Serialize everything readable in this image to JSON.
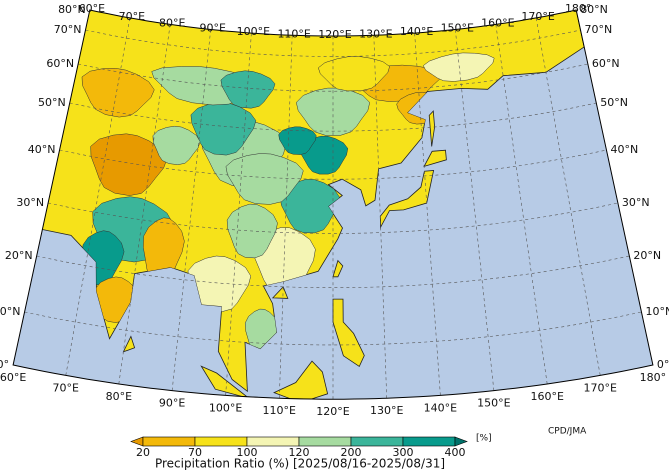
{
  "map": {
    "latitude_labels_left": [
      "0°",
      "10°N",
      "20°N",
      "30°N",
      "40°N",
      "50°N",
      "60°N",
      "70°N",
      "80°N"
    ],
    "latitude_labels_right": [
      "0°",
      "10°N",
      "20°N",
      "30°N",
      "40°N",
      "50°N",
      "60°N",
      "70°N",
      "80°N"
    ],
    "longitude_labels_top": [
      "60°E",
      "70°E",
      "80°E",
      "90°E",
      "100°E",
      "110°E",
      "120°E",
      "130°E",
      "140°E",
      "150°E",
      "160°E",
      "170°E",
      "180°"
    ],
    "longitude_labels_bottom": [
      "60°E",
      "70°E",
      "80°E",
      "90°E",
      "100°E",
      "110°E",
      "120°E",
      "130°E",
      "140°E",
      "150°E",
      "160°E",
      "170°E",
      "180°"
    ]
  },
  "colorbar": {
    "ticks": [
      20,
      70,
      100,
      120,
      200,
      300,
      400
    ],
    "colors": [
      "#e79a00",
      "#f3b90a",
      "#f6e21a",
      "#f4f5b4",
      "#a6dba0",
      "#3bb59a",
      "#089b8c",
      "#00716a"
    ],
    "unit": "[%]",
    "caption": "Precipitation Ratio (%) [2025/08/16-2025/08/31]"
  },
  "credit": "CPD/JMA"
}
